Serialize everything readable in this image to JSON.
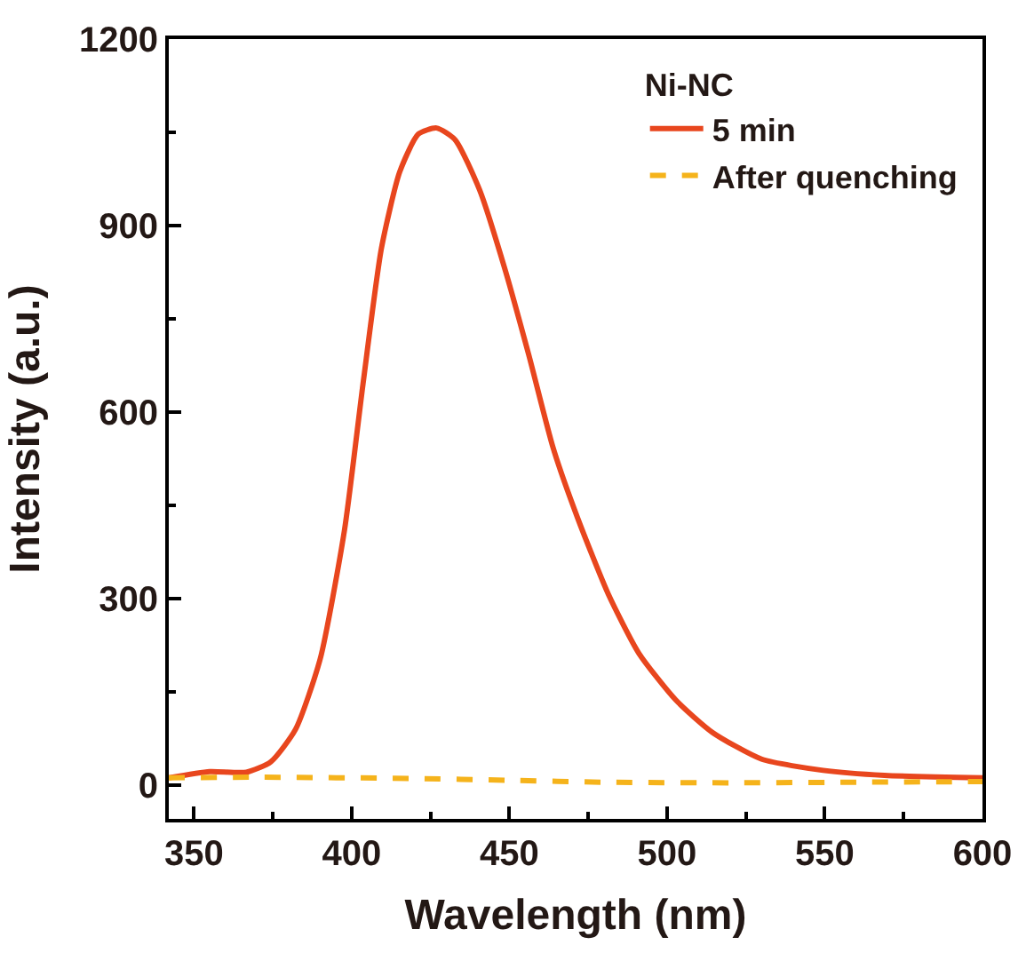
{
  "chart_data": {
    "type": "line",
    "xlabel": "Wavelength (nm)",
    "ylabel": "Intensity (a.u.)",
    "legend_title": "Ni-NC",
    "legend": "top right",
    "marker": "none",
    "xlim": [
      342,
      600
    ],
    "xticks": [
      350,
      400,
      450,
      500,
      550,
      600
    ],
    "ylim": [
      -54,
      1200
    ],
    "yticks": [
      0,
      300,
      600,
      900,
      1200
    ],
    "series": [
      {
        "name": "5 min",
        "color": "#e8461e",
        "line_style": "solid",
        "x": [
          342,
          355,
          366.6,
          374.4,
          382.2,
          390,
          397.7,
          403.6,
          409.4,
          415.2,
          421.1,
          426.9,
          432.8,
          440.5,
          448.3,
          456.1,
          463.9,
          471.7,
          481.4,
          491.1,
          502.8,
          514.4,
          530,
          549.5,
          568.9,
          600
        ],
        "values": [
          12,
          22,
          21,
          38,
          90,
          203,
          410,
          646,
          863,
          986,
          1047,
          1057,
          1038,
          958,
          835,
          693,
          542,
          429,
          307,
          212,
          137,
          85,
          42,
          24,
          16,
          12
        ]
      },
      {
        "name": "After quenching",
        "color": "#f5b31b",
        "line_style": "dashed",
        "x": [
          342,
          370,
          420,
          450,
          480,
          520,
          560,
          600
        ],
        "values": [
          12,
          13,
          11,
          8,
          5,
          4,
          5,
          6
        ]
      }
    ]
  }
}
